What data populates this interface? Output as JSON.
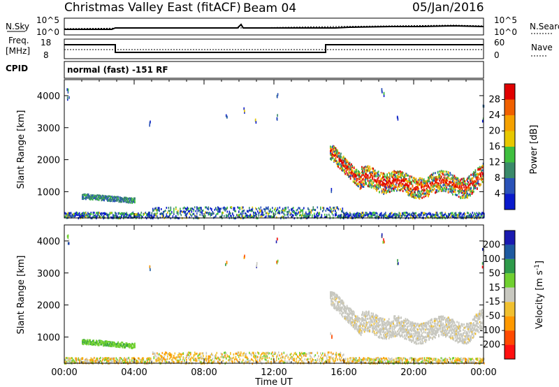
{
  "header": {
    "title": "Christmas Valley East (fitACF)",
    "beam": "Beam 04",
    "date": "05/Jan/2016"
  },
  "top_panels": {
    "nsky_label": "N.Sky",
    "nsky_ticks": [
      "10^5",
      "10^0"
    ],
    "nsearch_label": "N.Search",
    "nsearch_ticks": [
      "10^5",
      "10^0"
    ],
    "freq_label_line1": "Freq.",
    "freq_label_line2": "[MHz]",
    "freq_ticks": [
      "18",
      "8"
    ],
    "nave_label": "Nave",
    "nave_ticks": [
      "60",
      "0"
    ],
    "cpid_label": "CPID",
    "cpid_text": "normal (fast) -151 RF"
  },
  "colors": {
    "power": [
      "#0a1acc",
      "#2a52b8",
      "#3a8a6a",
      "#3fbf3f",
      "#e8c800",
      "#f5a100",
      "#f06000",
      "#e00000"
    ],
    "velocity": [
      "#ff1010",
      "#ff4a00",
      "#ff9900",
      "#f0c030",
      "#c8c8c0",
      "#70d030",
      "#2e9a4a",
      "#1e5aa0",
      "#1a1ab0"
    ]
  },
  "chart_data": [
    {
      "type": "heatmap",
      "name": "power",
      "ylabel": "Slant Range [km]",
      "y_ticks": [
        1000,
        2000,
        3000,
        4000
      ],
      "ylim": [
        180,
        4500
      ],
      "x_ticks": [
        "00:00",
        "04:00",
        "08:00",
        "12:00",
        "16:00",
        "20:00",
        "00:00"
      ],
      "xlim_hours": [
        0,
        24
      ],
      "colorbar_label": "Power [dB]",
      "colorbar_ticks": [
        4,
        8,
        12,
        16,
        20,
        24,
        28
      ],
      "features": [
        {
          "t": [
            1.0,
            4.0
          ],
          "range_km": [
            700,
            950
          ],
          "level": "low-mid"
        },
        {
          "t": [
            0.0,
            24.0
          ],
          "range_km": [
            200,
            450
          ],
          "level": "low-mixed"
        },
        {
          "t": [
            15.2,
            24.0
          ],
          "range_km": [
            1000,
            2400
          ],
          "level": "high",
          "peak_dB": 28
        }
      ]
    },
    {
      "type": "heatmap",
      "name": "velocity",
      "ylabel": "Slant Range [km]",
      "y_ticks": [
        1000,
        2000,
        3000,
        4000
      ],
      "ylim": [
        180,
        4500
      ],
      "x_ticks": [
        "00:00",
        "04:00",
        "08:00",
        "12:00",
        "16:00",
        "20:00",
        "00:00"
      ],
      "xlim_hours": [
        0,
        24
      ],
      "xlabel": "Time UT",
      "colorbar_label": "Velocity [m s^-1]",
      "colorbar_ticks": [
        200,
        100,
        50,
        15,
        -15,
        -50,
        -100,
        -200
      ],
      "features": [
        {
          "t": [
            1.0,
            4.0
          ],
          "range_km": [
            700,
            950
          ],
          "velocity": 60
        },
        {
          "t": [
            0.0,
            24.0
          ],
          "range_km": [
            200,
            450
          ],
          "velocity": -20
        },
        {
          "t": [
            15.2,
            24.0
          ],
          "range_km": [
            1000,
            2400
          ],
          "velocity": 0
        }
      ]
    }
  ]
}
